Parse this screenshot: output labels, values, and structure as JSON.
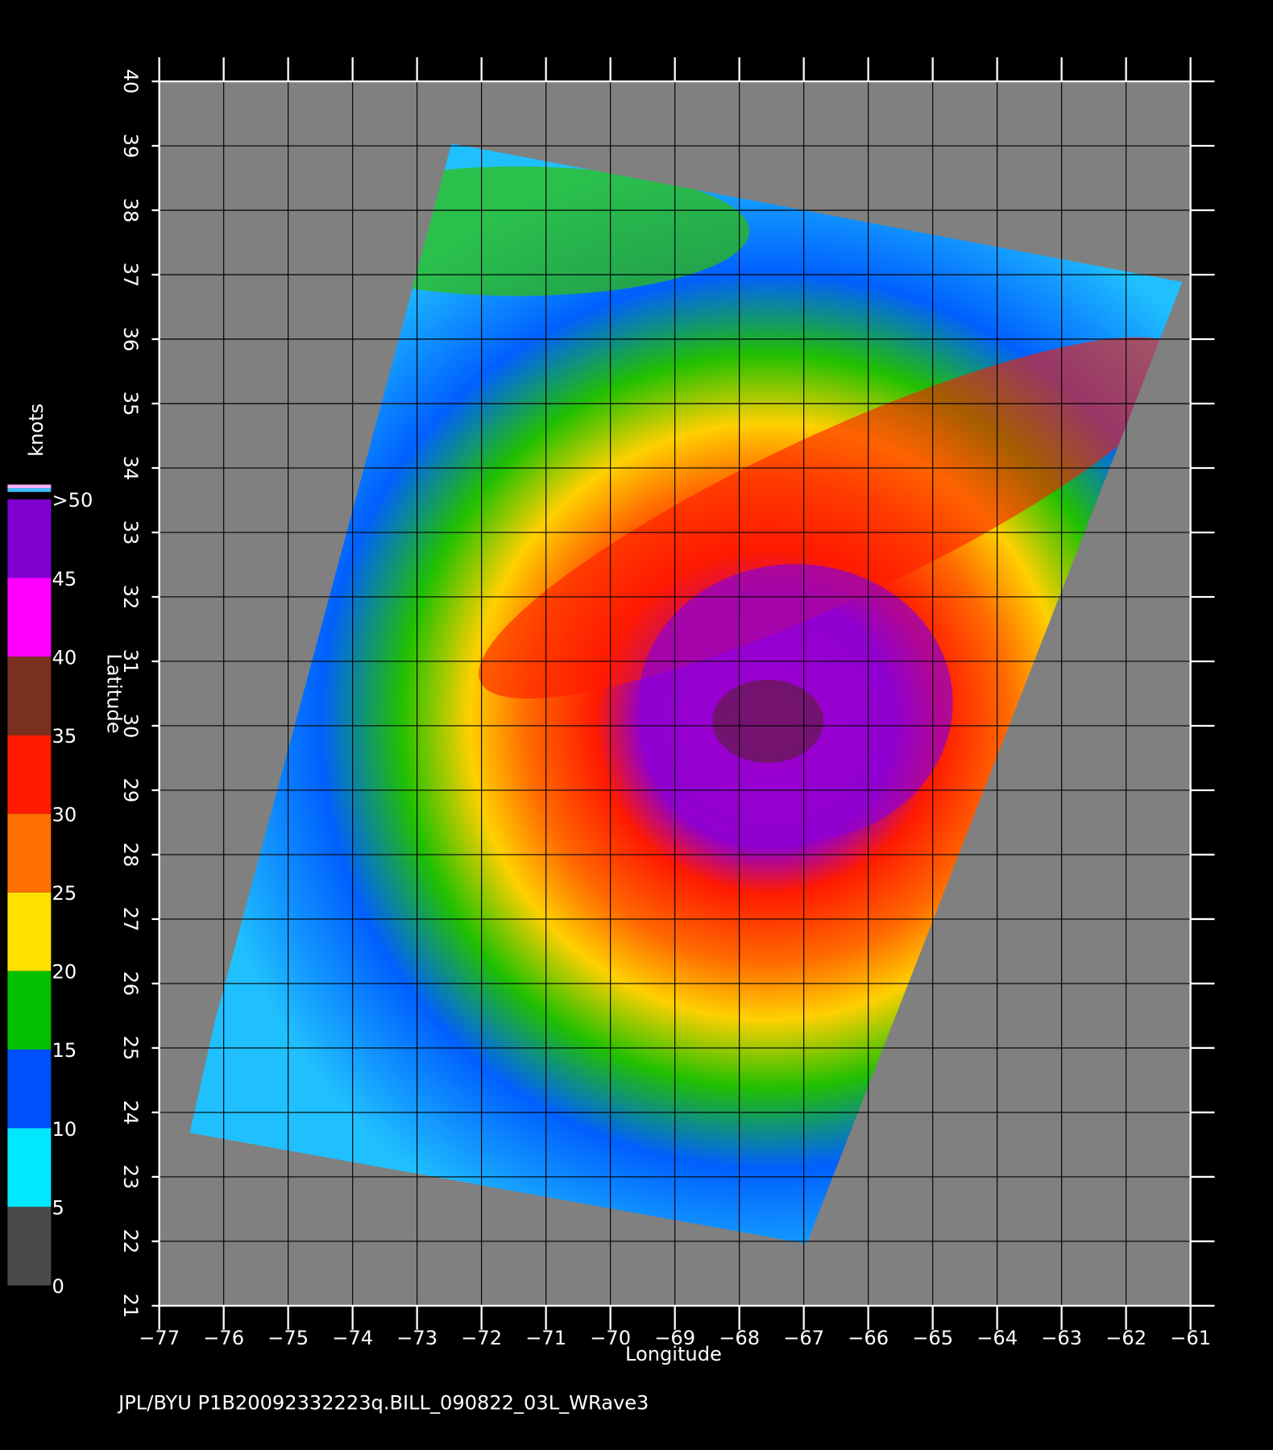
{
  "chart_data": {
    "type": "map",
    "x_label": "Longitude",
    "y_label": "Latitude",
    "xlim": [
      -77,
      -61
    ],
    "ylim": [
      21,
      40
    ],
    "xticks": [
      {
        "value": -77,
        "label": "−77"
      },
      {
        "value": -76,
        "label": "−76"
      },
      {
        "value": -75,
        "label": "−75"
      },
      {
        "value": -74,
        "label": "−74"
      },
      {
        "value": -73,
        "label": "−73"
      },
      {
        "value": -72,
        "label": "−72"
      },
      {
        "value": -71,
        "label": "−71"
      },
      {
        "value": -70,
        "label": "−70"
      },
      {
        "value": -69,
        "label": "−69"
      },
      {
        "value": -68,
        "label": "−68"
      },
      {
        "value": -67,
        "label": "−67"
      },
      {
        "value": -66,
        "label": "−66"
      },
      {
        "value": -65,
        "label": "−65"
      },
      {
        "value": -64,
        "label": "−64"
      },
      {
        "value": -63,
        "label": "−63"
      },
      {
        "value": -62,
        "label": "−62"
      },
      {
        "value": -61,
        "label": "−61"
      }
    ],
    "yticks": [
      21,
      22,
      23,
      24,
      25,
      26,
      27,
      28,
      29,
      30,
      31,
      32,
      33,
      34,
      35,
      36,
      37,
      38,
      39,
      40
    ],
    "grid": true,
    "colorbar": {
      "label": "knots",
      "lim": [
        0,
        50
      ],
      "ticks": [
        0,
        5,
        10,
        15,
        20,
        25,
        30,
        35,
        40,
        45,
        {
          "value": 50,
          "label": ">50"
        }
      ],
      "colors": [
        "#4a4a4a",
        "#00e8ff",
        "#0050ff",
        "#00c000",
        "#ffe000",
        "#ff7000",
        "#ff1a00",
        "#7a3020",
        "#ff00ff",
        "#8000d0"
      ]
    },
    "footer": "JPL/BYU  P1B20092332223q.BILL_090822_03L_WRave3"
  }
}
